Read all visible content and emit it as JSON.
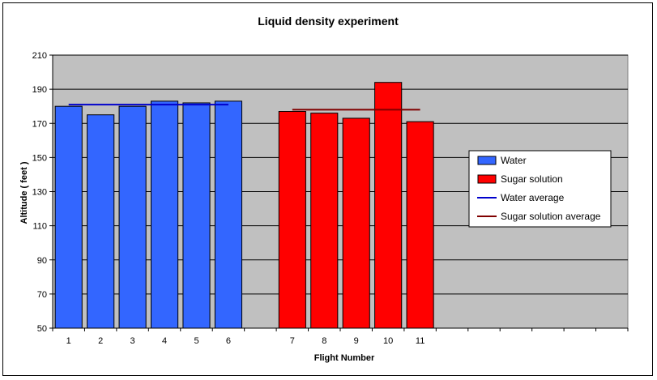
{
  "chart_data": {
    "type": "bar",
    "title": "Liquid density experiment",
    "xlabel": "Flight Number",
    "ylabel": "Altitude ( feet )",
    "ylim": [
      50,
      210
    ],
    "yticks": [
      50,
      70,
      90,
      110,
      130,
      150,
      170,
      190,
      210
    ],
    "grid": true,
    "legend_position": "right",
    "x_slots": [
      "1",
      "2",
      "3",
      "4",
      "5",
      "6",
      "",
      "7",
      "8",
      "9",
      "10",
      "11",
      "",
      "",
      "",
      "",
      "",
      ""
    ],
    "series": [
      {
        "name": "Water",
        "color": "#3366ff",
        "points": [
          {
            "slot": 0,
            "label": "1",
            "value": 180
          },
          {
            "slot": 1,
            "label": "2",
            "value": 175
          },
          {
            "slot": 2,
            "label": "3",
            "value": 180
          },
          {
            "slot": 3,
            "label": "4",
            "value": 183
          },
          {
            "slot": 4,
            "label": "5",
            "value": 182
          },
          {
            "slot": 5,
            "label": "6",
            "value": 183
          }
        ]
      },
      {
        "name": "Sugar solution",
        "color": "#ff0000",
        "points": [
          {
            "slot": 7,
            "label": "7",
            "value": 177
          },
          {
            "slot": 8,
            "label": "8",
            "value": 176
          },
          {
            "slot": 9,
            "label": "9",
            "value": 173
          },
          {
            "slot": 10,
            "label": "10",
            "value": 194
          },
          {
            "slot": 11,
            "label": "11",
            "value": 171
          }
        ]
      }
    ],
    "averages": [
      {
        "name": "Water average",
        "color": "#0000cc",
        "value": 181,
        "from_slot": 0,
        "to_slot": 5
      },
      {
        "name": "Sugar solution average",
        "color": "#800000",
        "value": 178,
        "from_slot": 7,
        "to_slot": 11
      }
    ],
    "colors": {
      "plot_background": "#c0c0c0",
      "gridline": "#000000"
    }
  }
}
